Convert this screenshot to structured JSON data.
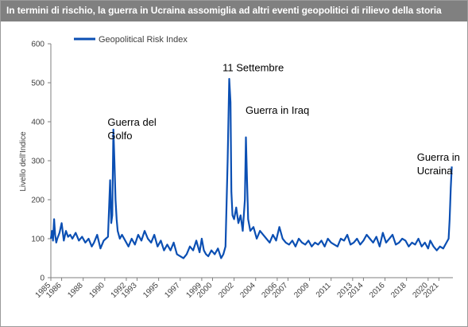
{
  "chart_data": {
    "type": "line",
    "title": "In termini di rischio, la guerra in Ucraina assomiglia ad altri eventi geopolitici di rilievo della storia",
    "ylabel": "Livello dell'Indice",
    "xlabel": "",
    "ylim": [
      0,
      600
    ],
    "yticks": [
      0,
      100,
      200,
      300,
      400,
      500,
      600
    ],
    "xlim": [
      1985,
      2022.3
    ],
    "xticks": [
      1985,
      1986,
      1988,
      1990,
      1992,
      1993,
      1995,
      1997,
      1999,
      2000,
      2002,
      2004,
      2006,
      2007,
      2009,
      2011,
      2013,
      2014,
      2016,
      2018,
      2020,
      2021
    ],
    "grid": false,
    "legend_position": "top-left",
    "line_color": "#0b4fb3",
    "series": [
      {
        "name": "Geopolitical Risk Index",
        "x": [
          1985.0,
          1985.1,
          1985.2,
          1985.3,
          1985.4,
          1985.5,
          1985.6,
          1985.8,
          1986.0,
          1986.2,
          1986.4,
          1986.6,
          1986.8,
          1987.0,
          1987.3,
          1987.6,
          1987.9,
          1988.2,
          1988.5,
          1988.8,
          1989.0,
          1989.3,
          1989.6,
          1989.9,
          1990.1,
          1990.3,
          1990.5,
          1990.6,
          1990.7,
          1990.8,
          1990.9,
          1991.0,
          1991.1,
          1991.2,
          1991.4,
          1991.6,
          1991.9,
          1992.2,
          1992.5,
          1992.8,
          1993.1,
          1993.4,
          1993.7,
          1994.0,
          1994.3,
          1994.6,
          1994.9,
          1995.2,
          1995.5,
          1995.8,
          1996.1,
          1996.4,
          1996.7,
          1997.0,
          1997.3,
          1997.6,
          1997.9,
          1998.2,
          1998.5,
          1998.8,
          1999.0,
          1999.2,
          1999.4,
          1999.6,
          1999.9,
          2000.2,
          2000.5,
          2000.8,
          2001.0,
          2001.2,
          2001.4,
          2001.55,
          2001.67,
          2001.75,
          2001.85,
          2002.0,
          2002.2,
          2002.4,
          2002.6,
          2002.8,
          2003.0,
          2003.1,
          2003.2,
          2003.3,
          2003.5,
          2003.8,
          2004.1,
          2004.4,
          2004.7,
          2005.0,
          2005.3,
          2005.6,
          2005.9,
          2006.2,
          2006.5,
          2006.8,
          2007.1,
          2007.4,
          2007.7,
          2008.0,
          2008.3,
          2008.6,
          2008.9,
          2009.2,
          2009.5,
          2009.8,
          2010.1,
          2010.4,
          2010.7,
          2011.0,
          2011.3,
          2011.6,
          2011.9,
          2012.2,
          2012.5,
          2012.8,
          2013.1,
          2013.4,
          2013.7,
          2014.0,
          2014.3,
          2014.6,
          2014.9,
          2015.2,
          2015.5,
          2015.8,
          2016.1,
          2016.4,
          2016.7,
          2017.0,
          2017.3,
          2017.6,
          2017.9,
          2018.2,
          2018.5,
          2018.8,
          2019.1,
          2019.4,
          2019.7,
          2020.0,
          2020.2,
          2020.5,
          2020.8,
          2021.1,
          2021.4,
          2021.7,
          2021.9,
          2022.0,
          2022.1,
          2022.2
        ],
        "values": [
          100,
          120,
          95,
          150,
          110,
          90,
          100,
          115,
          140,
          95,
          120,
          105,
          110,
          100,
          115,
          95,
          105,
          90,
          100,
          80,
          90,
          110,
          75,
          95,
          100,
          105,
          250,
          140,
          160,
          380,
          300,
          200,
          150,
          120,
          100,
          110,
          95,
          80,
          100,
          85,
          110,
          95,
          120,
          100,
          90,
          110,
          80,
          95,
          70,
          85,
          70,
          90,
          60,
          55,
          50,
          60,
          80,
          70,
          95,
          65,
          100,
          70,
          60,
          55,
          70,
          60,
          75,
          50,
          60,
          80,
          300,
          510,
          450,
          220,
          160,
          150,
          180,
          140,
          160,
          120,
          200,
          360,
          250,
          150,
          120,
          130,
          100,
          120,
          110,
          100,
          90,
          110,
          95,
          130,
          100,
          90,
          85,
          95,
          80,
          100,
          90,
          85,
          95,
          80,
          90,
          85,
          95,
          80,
          100,
          90,
          85,
          80,
          100,
          95,
          110,
          85,
          90,
          100,
          85,
          95,
          110,
          100,
          90,
          105,
          80,
          115,
          90,
          100,
          110,
          85,
          90,
          100,
          95,
          80,
          90,
          85,
          100,
          80,
          90,
          75,
          95,
          80,
          70,
          80,
          75,
          90,
          100,
          150,
          230,
          285
        ]
      }
    ],
    "annotations": [
      {
        "text": [
          "Guerra del",
          "Golfo"
        ],
        "x": 1991.0,
        "y": 390
      },
      {
        "text": [
          "11 Settembre"
        ],
        "x": 2001.67,
        "y": 530
      },
      {
        "text": [
          "Guerra in Iraq"
        ],
        "x": 2003.8,
        "y": 420
      },
      {
        "text": [
          "Guerra in",
          "Ucraina"
        ],
        "x": 2019.7,
        "y": 300
      }
    ]
  }
}
